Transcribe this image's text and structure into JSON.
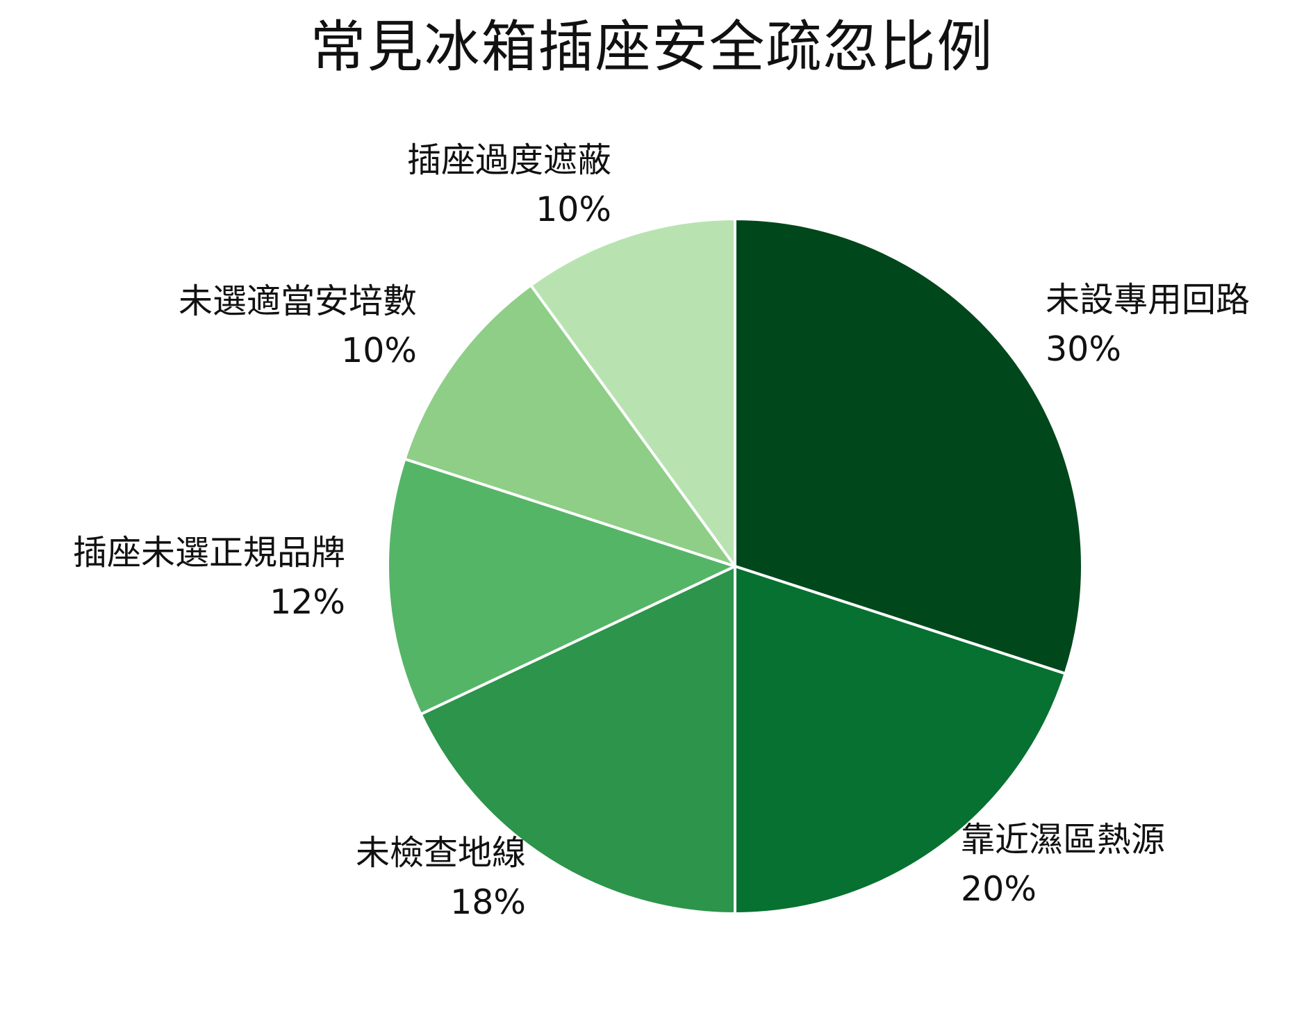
{
  "chart_data": {
    "type": "pie",
    "title": "常見冰箱插座安全疏忽比例",
    "categories": [
      "未設專用回路",
      "靠近濕區熱源",
      "未檢查地線",
      "插座未選正規品牌",
      "未選適當安培數",
      "插座過度遮蔽"
    ],
    "values": [
      30,
      20,
      18,
      12,
      10,
      10
    ],
    "value_labels": [
      "30%",
      "20%",
      "18%",
      "12%",
      "10%",
      "10%"
    ],
    "colors": [
      "#00471b",
      "#067130",
      "#2c944b",
      "#55b567",
      "#8ece87",
      "#b8e3b1"
    ],
    "start_angle": "12 o'clock",
    "direction": "clockwise",
    "legend": "none",
    "label_placement": "outside"
  }
}
